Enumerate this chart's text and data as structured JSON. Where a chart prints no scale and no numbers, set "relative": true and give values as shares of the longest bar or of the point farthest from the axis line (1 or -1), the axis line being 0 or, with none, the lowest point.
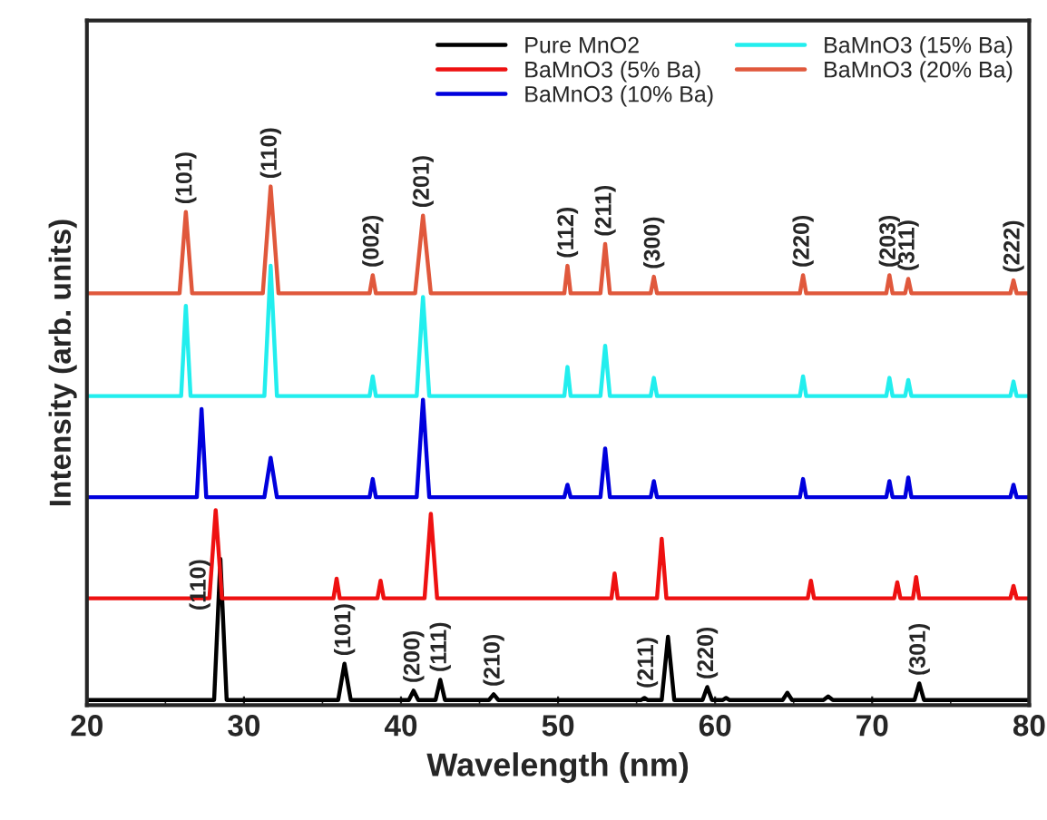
{
  "chart_data": {
    "type": "line",
    "relative": true,
    "xlabel": "Wavelength (nm)",
    "ylabel": "Intensity (arb. units)",
    "xlim": [
      20,
      80
    ],
    "xticks": [
      20,
      30,
      40,
      50,
      60,
      70,
      80
    ],
    "tick_labels": "x",
    "legend": "top right",
    "grid": false,
    "marker": "none",
    "line_style": "solid",
    "series": [
      {
        "name": "Pure MnO2",
        "color": "#000000",
        "x": [
          20,
          28.1,
          28.5,
          28.9,
          36.0,
          36.4,
          36.8,
          40.5,
          40.8,
          41.1,
          42.2,
          42.5,
          42.8,
          45.6,
          45.9,
          46.2,
          55.3,
          55.5,
          55.7,
          56.6,
          57.0,
          57.4,
          59.2,
          59.5,
          59.8,
          60.5,
          60.7,
          60.9,
          64.3,
          64.6,
          64.9,
          66.9,
          67.2,
          67.5,
          72.7,
          73.0,
          73.3,
          80
        ],
        "values": [
          0.01,
          0.01,
          0.282,
          0.01,
          0.01,
          0.08,
          0.01,
          0.01,
          0.028,
          0.01,
          0.01,
          0.049,
          0.01,
          0.01,
          0.021,
          0.01,
          0.01,
          0.014,
          0.01,
          0.01,
          0.132,
          0.01,
          0.01,
          0.035,
          0.01,
          0.01,
          0.014,
          0.01,
          0.01,
          0.024,
          0.01,
          0.01,
          0.017,
          0.01,
          0.01,
          0.042,
          0.01,
          0.01
        ]
      },
      {
        "name": "BaMnO3 (5% Ba)",
        "color": "#ee1111",
        "x": [
          20,
          27.8,
          28.2,
          28.6,
          35.7,
          35.9,
          36.1,
          38.5,
          38.7,
          38.9,
          41.5,
          41.9,
          42.3,
          53.4,
          53.6,
          53.8,
          56.3,
          56.6,
          56.9,
          65.9,
          66.1,
          66.3,
          71.4,
          71.6,
          71.8,
          72.6,
          72.8,
          73.0,
          78.8,
          79.0,
          79.2,
          80
        ],
        "values": [
          0.206,
          0.206,
          0.376,
          0.206,
          0.206,
          0.244,
          0.206,
          0.206,
          0.24,
          0.206,
          0.206,
          0.369,
          0.206,
          0.206,
          0.254,
          0.206,
          0.206,
          0.321,
          0.206,
          0.206,
          0.24,
          0.206,
          0.206,
          0.237,
          0.206,
          0.206,
          0.247,
          0.206,
          0.206,
          0.23,
          0.206,
          0.206
        ]
      },
      {
        "name": "BaMnO3 (10% Ba)",
        "color": "#0000dd",
        "x": [
          20,
          27.0,
          27.3,
          27.6,
          31.3,
          31.7,
          32.1,
          38.0,
          38.2,
          38.4,
          41.0,
          41.4,
          41.8,
          50.4,
          50.6,
          50.8,
          52.7,
          53.0,
          53.3,
          55.9,
          56.1,
          56.3,
          65.4,
          65.6,
          65.8,
          70.9,
          71.1,
          71.3,
          72.1,
          72.3,
          72.5,
          78.8,
          79.0,
          79.2,
          80
        ],
        "values": [
          0.401,
          0.401,
          0.571,
          0.401,
          0.401,
          0.477,
          0.401,
          0.401,
          0.436,
          0.401,
          0.401,
          0.589,
          0.401,
          0.401,
          0.425,
          0.401,
          0.401,
          0.495,
          0.401,
          0.401,
          0.432,
          0.401,
          0.401,
          0.436,
          0.401,
          0.401,
          0.432,
          0.401,
          0.401,
          0.439,
          0.401,
          0.401,
          0.425,
          0.401,
          0.401
        ]
      },
      {
        "name": "BaMnO3 (15% Ba)",
        "color": "#22eeee",
        "x": [
          20,
          26.0,
          26.3,
          26.6,
          31.3,
          31.7,
          32.1,
          38.0,
          38.2,
          38.4,
          41.0,
          41.4,
          41.8,
          50.4,
          50.6,
          50.8,
          52.7,
          53.0,
          53.3,
          55.9,
          56.1,
          56.3,
          65.4,
          65.6,
          65.8,
          70.9,
          71.1,
          71.3,
          72.1,
          72.3,
          72.5,
          78.8,
          79.0,
          79.2,
          80
        ],
        "values": [
          0.596,
          0.596,
          0.77,
          0.596,
          0.596,
          0.847,
          0.596,
          0.596,
          0.634,
          0.596,
          0.596,
          0.787,
          0.596,
          0.596,
          0.652,
          0.596,
          0.596,
          0.693,
          0.596,
          0.596,
          0.631,
          0.596,
          0.596,
          0.634,
          0.596,
          0.596,
          0.631,
          0.596,
          0.596,
          0.627,
          0.596,
          0.596,
          0.624,
          0.596,
          0.596
        ]
      },
      {
        "name": "BaMnO3 (20% Ba)",
        "color": "#e0583c",
        "x": [
          20,
          25.9,
          26.3,
          26.7,
          31.2,
          31.7,
          32.2,
          38.0,
          38.2,
          38.4,
          40.9,
          41.4,
          41.9,
          50.4,
          50.6,
          50.8,
          52.7,
          53.0,
          53.3,
          55.9,
          56.1,
          56.3,
          65.4,
          65.6,
          65.8,
          70.9,
          71.1,
          71.3,
          72.1,
          72.3,
          72.5,
          78.8,
          79.0,
          79.2,
          80
        ],
        "values": [
          0.794,
          0.794,
          0.951,
          0.794,
          0.794,
          1.0,
          0.794,
          0.794,
          0.829,
          0.794,
          0.794,
          0.944,
          0.794,
          0.794,
          0.847,
          0.794,
          0.794,
          0.889,
          0.794,
          0.794,
          0.826,
          0.794,
          0.794,
          0.829,
          0.794,
          0.794,
          0.829,
          0.794,
          0.794,
          0.822,
          0.794,
          0.794,
          0.819,
          0.794,
          0.794
        ]
      }
    ],
    "annotations": [
      {
        "text": "(101)",
        "x": 26.3,
        "y": 0.951
      },
      {
        "text": "(110)",
        "x": 31.7,
        "y": 1.0
      },
      {
        "text": "(002)",
        "x": 38.2,
        "y": 0.829
      },
      {
        "text": "(201)",
        "x": 41.4,
        "y": 0.944
      },
      {
        "text": "(112)",
        "x": 50.6,
        "y": 0.847
      },
      {
        "text": "(211)",
        "x": 53.0,
        "y": 0.889
      },
      {
        "text": "(300)",
        "x": 56.1,
        "y": 0.826
      },
      {
        "text": "(220)",
        "x": 65.6,
        "y": 0.829
      },
      {
        "text": "(203)",
        "x": 71.1,
        "y": 0.829
      },
      {
        "text": "(311)",
        "x": 72.3,
        "y": 0.822
      },
      {
        "text": "(222)",
        "x": 79.0,
        "y": 0.819
      },
      {
        "text": "(110)",
        "x": 28.5,
        "y": 0.282
      },
      {
        "text": "(101)",
        "x": 36.4,
        "y": 0.08
      },
      {
        "text": "(200)",
        "x": 40.8,
        "y": 0.028
      },
      {
        "text": "(111)",
        "x": 42.5,
        "y": 0.049
      },
      {
        "text": "(210)",
        "x": 45.9,
        "y": 0.021
      },
      {
        "text": "(211)",
        "x": 57.0,
        "y": 0.132
      },
      {
        "text": "(220)",
        "x": 59.5,
        "y": 0.035
      },
      {
        "text": "(301)",
        "x": 73.0,
        "y": 0.042
      }
    ]
  }
}
